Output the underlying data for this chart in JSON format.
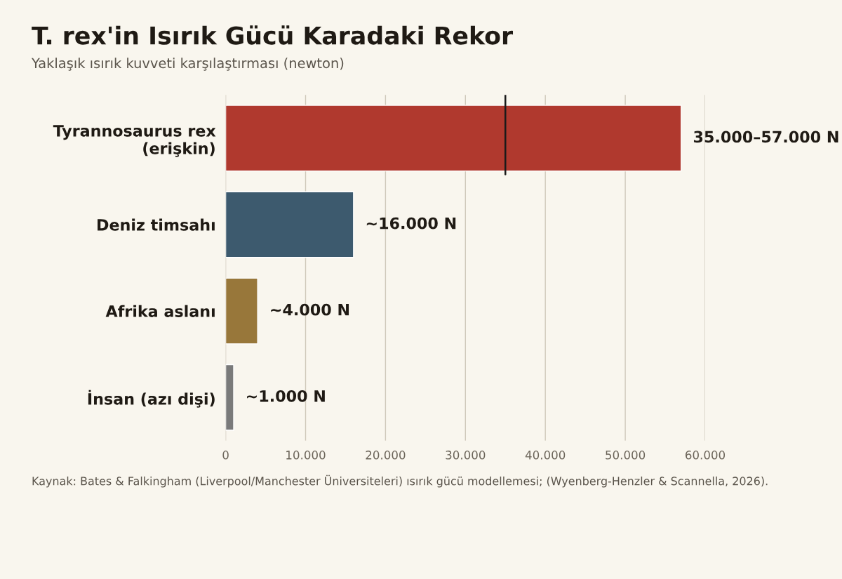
{
  "chart_data": {
    "type": "bar",
    "orientation": "horizontal",
    "title": "T. rex'in Isırık Gücü Karadaki Rekor",
    "subtitle": "Yaklaşık ısırık kuvveti karşılaştırması (newton)",
    "categories": [
      "Tyrannosaurus rex\n(erişkin)",
      "Deniz timsahı",
      "Afrika aslanı",
      "İnsan (azı dişi)"
    ],
    "values": [
      57000,
      16000,
      4000,
      1000
    ],
    "colors": [
      "#b0392e",
      "#3d5a6e",
      "#98773a",
      "#7a7a7a"
    ],
    "ref_lines": [
      {
        "axis": "x",
        "value": 35000,
        "color": "#1a1a1a"
      }
    ],
    "value_labels": [
      "35.000–57.000 N",
      "~16.000 N",
      "~4.000 N",
      "~1.000 N"
    ],
    "xlim": [
      0,
      60000
    ],
    "xticks": [
      0,
      {
        "value": 10000,
        "label": "10.000"
      },
      {
        "value": 20000,
        "label": "20.000"
      },
      {
        "value": 30000,
        "label": "30.000"
      },
      {
        "value": 40000,
        "label": "40.000"
      },
      {
        "value": 50000,
        "label": "50.000"
      },
      {
        "value": 60000,
        "label": "60.000"
      }
    ],
    "grid": "x",
    "annotations": [
      "Kaynak: Bates & Falkingham (Liverpool/Manchester Üniversiteleri) ısırık gücü modellemesi; (Wyenberg-Henzler & Scannella, 2026)."
    ]
  }
}
